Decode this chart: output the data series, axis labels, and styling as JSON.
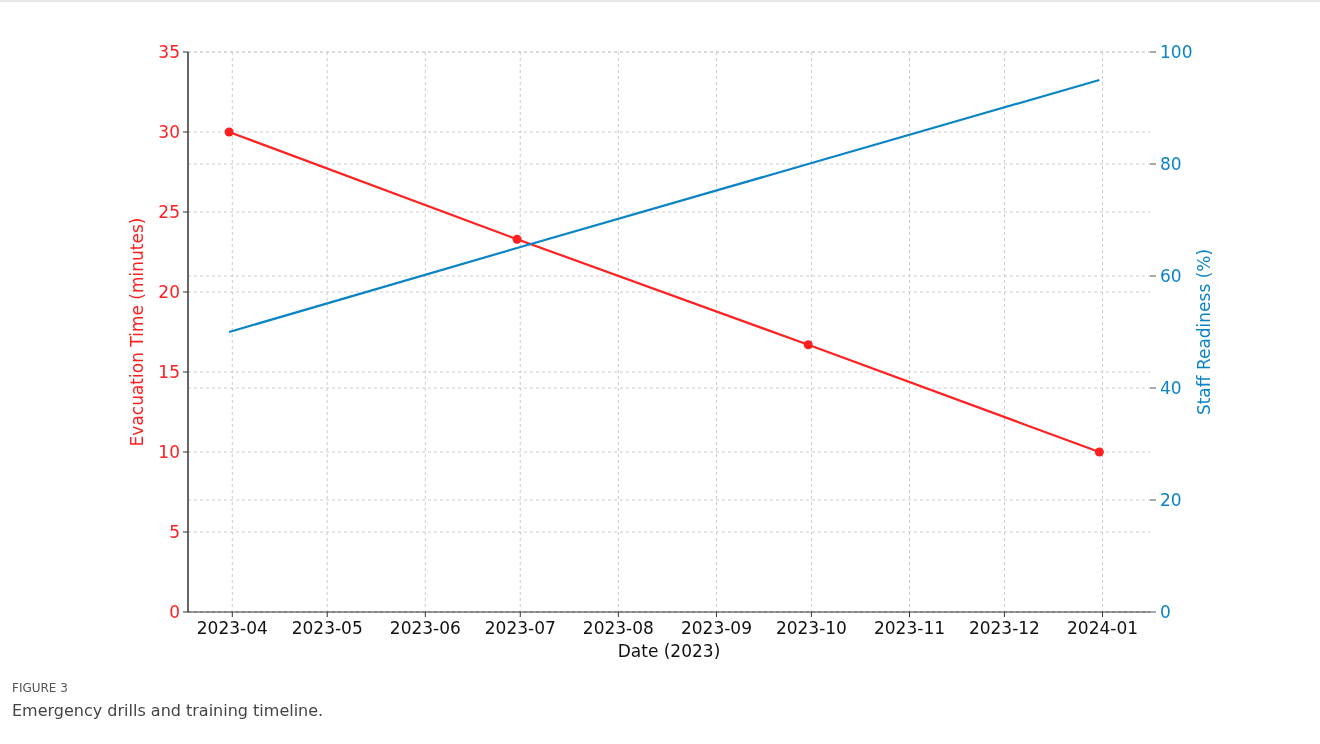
{
  "chart_data": {
    "type": "line",
    "xlabel": "Date (2023)",
    "ylabel": "Evacuation Time (minutes)",
    "y2label": "Staff Readiness (%)",
    "x": [
      "2023-03-31",
      "2023-06-30",
      "2023-09-30",
      "2023-12-31"
    ],
    "series": [
      {
        "color": "#ff2020",
        "values": [
          30,
          23.3,
          16.7,
          10
        ],
        "marker": "circle"
      },
      {
        "color": "#0a84c6",
        "values": [
          50,
          65,
          80,
          95
        ],
        "axis": "y2",
        "marker": "none"
      }
    ],
    "xlim": [
      "2023-03-18",
      "2024-01-16"
    ],
    "xticks": [
      {
        "value": "2023-04-01",
        "label": "2023-04"
      },
      {
        "value": "2023-05-01",
        "label": "2023-05"
      },
      {
        "value": "2023-06-01",
        "label": "2023-06"
      },
      {
        "value": "2023-07-01",
        "label": "2023-07"
      },
      {
        "value": "2023-08-01",
        "label": "2023-08"
      },
      {
        "value": "2023-09-01",
        "label": "2023-09"
      },
      {
        "value": "2023-10-01",
        "label": "2023-10"
      },
      {
        "value": "2023-11-01",
        "label": "2023-11"
      },
      {
        "value": "2023-12-01",
        "label": "2023-12"
      },
      {
        "value": "2024-01-01",
        "label": "2024-01"
      }
    ],
    "ylim": [
      0,
      35
    ],
    "yticks": [
      0,
      5,
      10,
      15,
      20,
      25,
      30,
      35
    ],
    "y2lim": [
      0,
      100
    ],
    "y2ticks": [
      0,
      20,
      40,
      60,
      80,
      100
    ],
    "grid": true,
    "line_style": "solid",
    "annotations": [
      "FIGURE 3",
      "Emergency drills and training timeline."
    ]
  }
}
